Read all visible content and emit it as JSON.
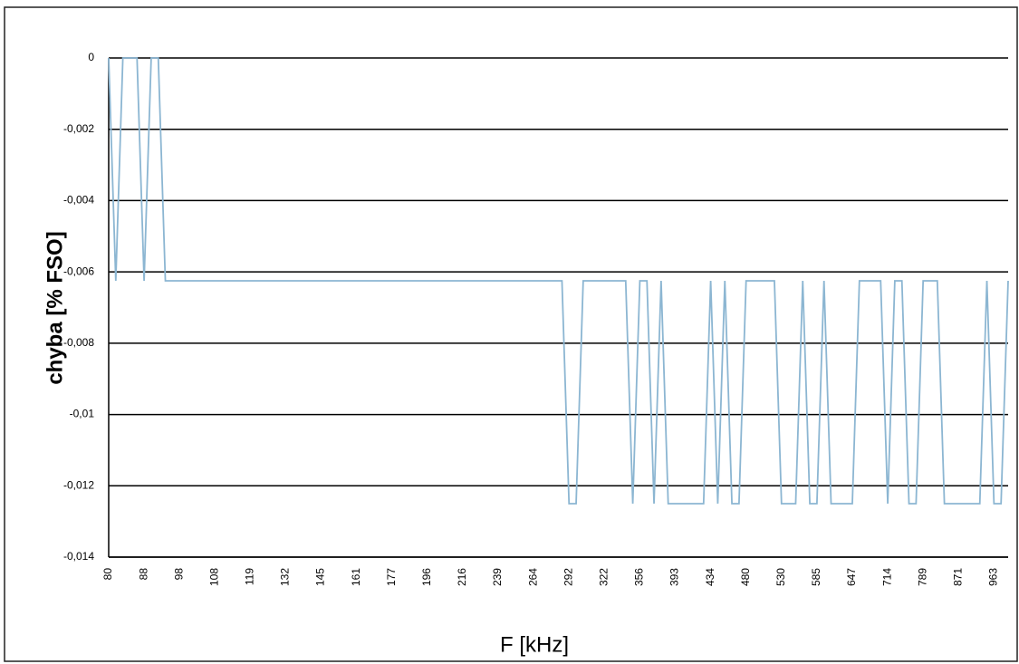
{
  "chart_data": {
    "type": "line",
    "y_label": "chyba [% FSO]",
    "x_label": "F [kHz]",
    "categories": [
      80,
      null,
      null,
      null,
      null,
      88,
      null,
      null,
      null,
      null,
      98,
      null,
      null,
      null,
      null,
      108,
      null,
      null,
      null,
      null,
      119,
      null,
      null,
      null,
      null,
      132,
      null,
      null,
      null,
      null,
      145,
      null,
      null,
      null,
      null,
      161,
      null,
      null,
      null,
      null,
      177,
      null,
      null,
      null,
      null,
      196,
      null,
      null,
      null,
      null,
      216,
      null,
      null,
      null,
      null,
      239,
      null,
      null,
      null,
      null,
      264,
      null,
      null,
      null,
      null,
      292,
      null,
      null,
      null,
      null,
      322,
      null,
      null,
      null,
      null,
      356,
      null,
      null,
      null,
      null,
      393,
      null,
      null,
      null,
      null,
      434,
      null,
      null,
      null,
      null,
      480,
      null,
      null,
      null,
      null,
      530,
      null,
      null,
      null,
      null,
      585,
      null,
      null,
      null,
      null,
      647,
      null,
      null,
      null,
      null,
      714,
      null,
      null,
      null,
      null,
      789,
      null,
      null,
      null,
      null,
      871,
      null,
      null,
      null,
      null,
      963,
      null,
      null
    ],
    "series": [
      {
        "name": "chyba",
        "color": "#8cb6d2",
        "values": [
          0,
          -0.00625,
          0,
          0,
          0,
          -0.00625,
          0,
          0,
          -0.00625,
          -0.00625,
          -0.00625,
          -0.00625,
          -0.00625,
          -0.00625,
          -0.00625,
          -0.00625,
          -0.00625,
          -0.00625,
          -0.00625,
          -0.00625,
          -0.00625,
          -0.00625,
          -0.00625,
          -0.00625,
          -0.00625,
          -0.00625,
          -0.00625,
          -0.00625,
          -0.00625,
          -0.00625,
          -0.00625,
          -0.00625,
          -0.00625,
          -0.00625,
          -0.00625,
          -0.00625,
          -0.00625,
          -0.00625,
          -0.00625,
          -0.00625,
          -0.00625,
          -0.00625,
          -0.00625,
          -0.00625,
          -0.00625,
          -0.00625,
          -0.00625,
          -0.00625,
          -0.00625,
          -0.00625,
          -0.00625,
          -0.00625,
          -0.00625,
          -0.00625,
          -0.00625,
          -0.00625,
          -0.00625,
          -0.00625,
          -0.00625,
          -0.00625,
          -0.00625,
          -0.00625,
          -0.00625,
          -0.00625,
          -0.00625,
          -0.0125,
          -0.0125,
          -0.00625,
          -0.00625,
          -0.00625,
          -0.00625,
          -0.00625,
          -0.00625,
          -0.00625,
          -0.0125,
          -0.00625,
          -0.00625,
          -0.0125,
          -0.00625,
          -0.0125,
          -0.0125,
          -0.0125,
          -0.0125,
          -0.0125,
          -0.0125,
          -0.00625,
          -0.0125,
          -0.00625,
          -0.0125,
          -0.0125,
          -0.00625,
          -0.00625,
          -0.00625,
          -0.00625,
          -0.00625,
          -0.0125,
          -0.0125,
          -0.0125,
          -0.00625,
          -0.0125,
          -0.0125,
          -0.00625,
          -0.0125,
          -0.0125,
          -0.0125,
          -0.0125,
          -0.00625,
          -0.00625,
          -0.00625,
          -0.00625,
          -0.0125,
          -0.00625,
          -0.00625,
          -0.0125,
          -0.0125,
          -0.00625,
          -0.00625,
          -0.00625,
          -0.0125,
          -0.0125,
          -0.0125,
          -0.0125,
          -0.0125,
          -0.0125,
          -0.00625,
          -0.0125,
          -0.0125,
          -0.00625
        ]
      }
    ],
    "ylim": [
      -0.014,
      0
    ],
    "yticks": [
      {
        "value": -0.014,
        "label": "-0,014"
      },
      {
        "value": -0.012,
        "label": "-0,012"
      },
      {
        "value": -0.01,
        "label": "-0,01"
      },
      {
        "value": -0.008,
        "label": "-0,008"
      },
      {
        "value": -0.006,
        "label": "-0,006"
      },
      {
        "value": -0.004,
        "label": "-0,004"
      },
      {
        "value": -0.002,
        "label": "-0,002"
      },
      0
    ],
    "grid": true
  }
}
